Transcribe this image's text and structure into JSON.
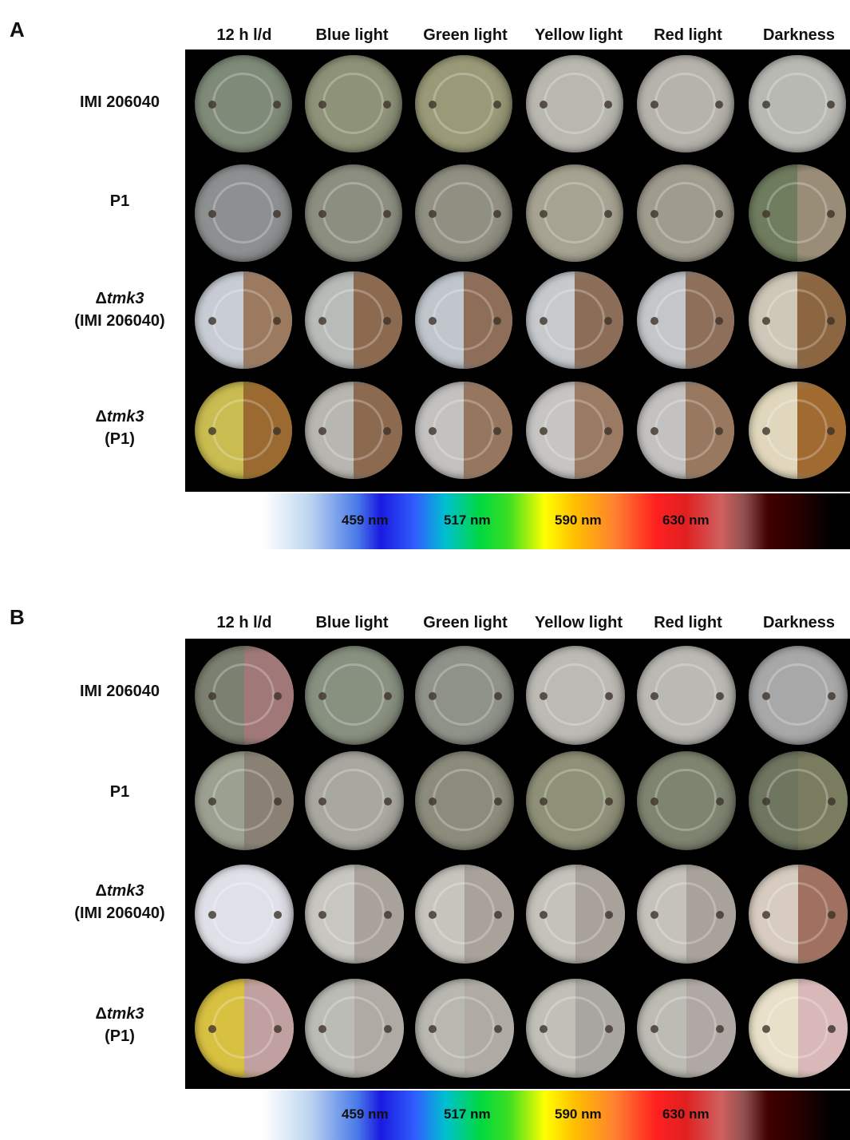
{
  "panels": [
    {
      "letter": "A",
      "columns": [
        "12 h l/d",
        "Blue light",
        "Green light",
        "Yellow light",
        "Red light",
        "Darkness"
      ],
      "rows": [
        {
          "line1": "IMI 206040",
          "line2_prefix": "",
          "line2": ""
        },
        {
          "line1": "P1",
          "line2_prefix": "",
          "line2": ""
        },
        {
          "line1_prefix": "Δ",
          "line1_italic": "tmk3",
          "line2": "(IMI 206040)"
        },
        {
          "line1_prefix": "Δ",
          "line1_italic": "tmk3",
          "line2": "(P1)"
        }
      ],
      "spectrum_labels": [
        "459 nm",
        "517 nm",
        "590 nm",
        "630 nm"
      ]
    },
    {
      "letter": "B",
      "columns": [
        "12 h l/d",
        "Blue light",
        "Green light",
        "Yellow light",
        "Red light",
        "Darkness"
      ],
      "rows": [
        {
          "line1": "IMI 206040",
          "line2_prefix": "",
          "line2": ""
        },
        {
          "line1": "P1",
          "line2_prefix": "",
          "line2": ""
        },
        {
          "line1_prefix": "Δ",
          "line1_italic": "tmk3",
          "line2": "(IMI 206040)"
        },
        {
          "line1_prefix": "Δ",
          "line1_italic": "tmk3",
          "line2": "(P1)"
        }
      ],
      "spectrum_labels": [
        "459 nm",
        "517 nm",
        "590 nm",
        "630 nm"
      ]
    }
  ],
  "plate_colors": {
    "A": [
      [
        "#7f8a78",
        "#8d9278",
        "#9a9a78",
        "#b9b8b0",
        "#b5b3ab",
        "#b9b9b4"
      ],
      [
        "#8d9090",
        "#8c8f80",
        "#8f8f82",
        "#a7a392",
        "#9f9c8e",
        "#6f7c5e"
      ],
      [
        "#c8ccd4",
        "#b8bcb8",
        "#c0c6cc",
        "#c6cacd",
        "#c4c7ca",
        "#cfc7b8"
      ],
      [
        "#c9bc50",
        "#b8b6b0",
        "#c3c2c0",
        "#c6c5c3",
        "#c3c2c0",
        "#e0d7bc"
      ]
    ],
    "A_right": [
      [
        null,
        null,
        null,
        null,
        null,
        null
      ],
      [
        null,
        null,
        null,
        null,
        null,
        "#9a8d78"
      ],
      [
        "#9b7a60",
        "#8c6a50",
        "#8e6e58",
        "#8c6e58",
        "#8d6f5a",
        "#8c6640"
      ],
      [
        "#9a6a30",
        "#8c6a50",
        "#96765e",
        "#9a7a62",
        "#98785e",
        "#a06a30"
      ]
    ],
    "B": [
      [
        "#7c8070",
        "#889080",
        "#8e9288",
        "#bcbab4",
        "#bab9b4",
        "#a8a8a8"
      ],
      [
        "#9ca090",
        "#a8a8a0",
        "#8c8c7c",
        "#8e9078",
        "#7e8470",
        "#6e7660"
      ],
      [
        "#e0e0e8",
        "#c8c6c0",
        "#c6c4bc",
        "#c4c2ba",
        "#c4c2ba",
        "#d8ccc0"
      ],
      [
        "#d8c040",
        "#bcbcb6",
        "#b8b8b0",
        "#c0c0b8",
        "#bcbcb4",
        "#e8e0c8"
      ]
    ],
    "B_right": [
      [
        "#a07878",
        null,
        null,
        null,
        null,
        null
      ],
      [
        "#8a8074",
        null,
        null,
        null,
        null,
        "#7a7c60"
      ],
      [
        null,
        "#a8a29a",
        "#a8a29a",
        "#a8a29a",
        "#a8a29a",
        "#a07060"
      ],
      [
        "#c0a0a0",
        "#b0aaa4",
        "#b0aaa4",
        "#a8a6a0",
        "#b0a8a4",
        "#d8b8b8"
      ]
    ]
  }
}
